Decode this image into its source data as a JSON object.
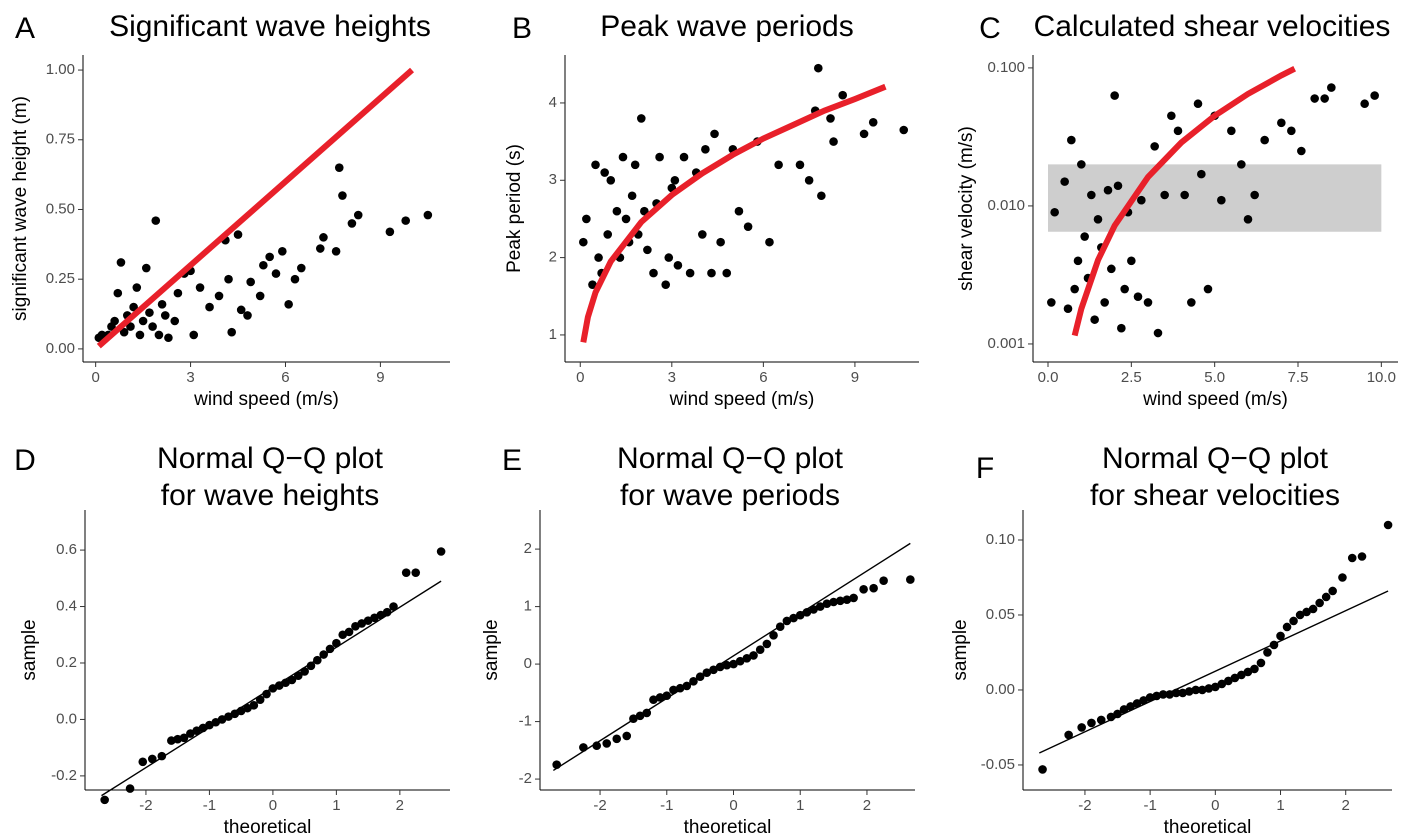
{
  "chart_data": [
    {
      "type": "scatter",
      "panel_label": "A",
      "title": [
        "Significant wave heights"
      ],
      "x_label": "wind speed (m/s)",
      "y_label": "significant wave height (m)",
      "xlim": [
        -0.4,
        11.2
      ],
      "ylim": [
        -0.047,
        1.054
      ],
      "log_y": false,
      "xticks": [
        0,
        3,
        6,
        9
      ],
      "yticks": [
        {
          "value": 0,
          "label": "0.00"
        },
        {
          "value": 0.25,
          "label": "0.25"
        },
        {
          "value": 0.5,
          "label": "0.50"
        },
        {
          "value": 0.75,
          "label": "0.75"
        },
        {
          "value": 1,
          "label": "1.00"
        }
      ],
      "series": [
        {
          "mark": "point",
          "color": "#000000",
          "x": [
            0.1,
            0.2,
            0.4,
            0.5,
            0.6,
            0.7,
            0.8,
            0.9,
            1.0,
            1.1,
            1.2,
            1.3,
            1.4,
            1.5,
            1.6,
            1.7,
            1.8,
            1.9,
            2.0,
            2.1,
            2.2,
            2.3,
            2.5,
            2.6,
            2.8,
            3.0,
            3.1,
            3.3,
            3.6,
            3.9,
            4.1,
            4.2,
            4.3,
            4.5,
            4.6,
            4.8,
            4.9,
            5.2,
            5.3,
            5.5,
            5.7,
            5.9,
            6.1,
            6.3,
            6.5,
            7.1,
            7.2,
            7.6,
            7.7,
            7.8,
            8.1,
            8.3,
            9.3,
            9.8,
            10.5
          ],
          "values": [
            0.04,
            0.05,
            0.05,
            0.08,
            0.1,
            0.2,
            0.31,
            0.06,
            0.12,
            0.08,
            0.15,
            0.22,
            0.05,
            0.1,
            0.29,
            0.13,
            0.08,
            0.46,
            0.05,
            0.16,
            0.12,
            0.04,
            0.1,
            0.2,
            0.27,
            0.28,
            0.05,
            0.22,
            0.15,
            0.19,
            0.39,
            0.25,
            0.06,
            0.41,
            0.14,
            0.12,
            0.24,
            0.19,
            0.3,
            0.33,
            0.27,
            0.35,
            0.16,
            0.25,
            0.29,
            0.36,
            0.4,
            0.35,
            0.65,
            0.55,
            0.45,
            0.48,
            0.42,
            0.46,
            0.48
          ]
        },
        {
          "mark": "line",
          "style": "thick",
          "color": "#e8202a",
          "x": [
            0.1,
            10
          ],
          "values": [
            0.01,
            1.0
          ]
        }
      ]
    },
    {
      "type": "scatter",
      "panel_label": "B",
      "title": [
        "Peak wave periods"
      ],
      "x_label": "wind speed (m/s)",
      "y_label": "Peak period (s)",
      "xlim": [
        -0.5,
        11.1
      ],
      "ylim": [
        0.65,
        4.62
      ],
      "log_y": false,
      "xticks": [
        0,
        3,
        6,
        9
      ],
      "yticks": [
        1,
        2,
        3,
        4
      ],
      "series": [
        {
          "mark": "point",
          "color": "#000000",
          "x": [
            0.1,
            0.2,
            0.4,
            0.5,
            0.6,
            0.7,
            0.8,
            0.9,
            1.0,
            1.2,
            1.3,
            1.4,
            1.5,
            1.6,
            1.7,
            1.8,
            1.9,
            2.0,
            2.1,
            2.2,
            2.4,
            2.5,
            2.6,
            2.8,
            2.9,
            3.0,
            3.1,
            3.2,
            3.4,
            3.6,
            3.8,
            4.0,
            4.1,
            4.3,
            4.4,
            4.6,
            4.8,
            5.0,
            5.2,
            5.5,
            5.8,
            6.2,
            6.5,
            7.2,
            7.5,
            7.7,
            7.8,
            7.9,
            8.2,
            8.3,
            8.6,
            9.3,
            9.6,
            10.6
          ],
          "values": [
            2.2,
            2.5,
            1.65,
            3.2,
            2.0,
            1.8,
            3.1,
            2.3,
            3.0,
            2.6,
            2.0,
            3.3,
            2.5,
            2.2,
            2.8,
            3.2,
            2.3,
            3.8,
            2.6,
            2.1,
            1.8,
            2.7,
            3.3,
            1.65,
            2.0,
            2.9,
            3.0,
            1.9,
            3.3,
            1.8,
            3.1,
            2.3,
            3.4,
            1.8,
            3.6,
            2.2,
            1.8,
            3.4,
            2.6,
            2.4,
            3.5,
            2.2,
            3.2,
            3.2,
            3.0,
            3.9,
            4.45,
            2.8,
            3.8,
            3.5,
            4.1,
            3.6,
            3.75,
            3.65
          ]
        },
        {
          "mark": "line",
          "style": "thick",
          "color": "#e8202a",
          "x": [
            0.1,
            0.25,
            0.5,
            1,
            2,
            3,
            4,
            5,
            6,
            7,
            8,
            9,
            10
          ],
          "values": [
            0.905,
            1.23,
            1.55,
            1.95,
            2.46,
            2.81,
            3.09,
            3.33,
            3.54,
            3.72,
            3.9,
            4.05,
            4.21
          ]
        }
      ]
    },
    {
      "type": "scatter",
      "panel_label": "C",
      "title": [
        "Calculated shear velocities"
      ],
      "x_label": "wind speed (m/s)",
      "y_label": "shear velocity (m/s)",
      "xlim": [
        -0.45,
        10.5
      ],
      "ylim": [
        0.00074,
        0.124
      ],
      "log_y": true,
      "xticks": [
        {
          "value": 0,
          "label": "0.0"
        },
        2.5,
        {
          "value": 5,
          "label": "5.0"
        },
        7.5,
        {
          "value": 10,
          "label": "10.0"
        }
      ],
      "yticks": [
        0.001,
        {
          "value": 0.01,
          "label": "0.010"
        },
        {
          "value": 0.1,
          "label": "0.100"
        }
      ],
      "shaded_region": {
        "color": "#bdbdbd",
        "x": [
          0,
          10
        ],
        "y": [
          0.0065,
          0.02
        ]
      },
      "series": [
        {
          "mark": "point",
          "color": "#000000",
          "x": [
            0.1,
            0.2,
            0.5,
            0.6,
            0.7,
            0.8,
            0.9,
            1.0,
            1.1,
            1.2,
            1.3,
            1.4,
            1.5,
            1.6,
            1.7,
            1.8,
            1.9,
            2.0,
            2.1,
            2.2,
            2.3,
            2.4,
            2.5,
            2.7,
            2.8,
            3.0,
            3.2,
            3.3,
            3.5,
            3.7,
            3.9,
            4.1,
            4.3,
            4.5,
            4.6,
            4.8,
            5.0,
            5.2,
            5.5,
            5.8,
            6.0,
            6.2,
            6.5,
            7.0,
            7.3,
            7.6,
            8.0,
            8.3,
            8.5,
            9.5,
            9.8
          ],
          "values": [
            0.002,
            0.009,
            0.015,
            0.0018,
            0.03,
            0.0025,
            0.004,
            0.02,
            0.006,
            0.003,
            0.012,
            0.0015,
            0.008,
            0.005,
            0.002,
            0.013,
            0.0035,
            0.063,
            0.014,
            0.0013,
            0.0025,
            0.009,
            0.004,
            0.0022,
            0.011,
            0.002,
            0.027,
            0.0012,
            0.012,
            0.045,
            0.035,
            0.012,
            0.002,
            0.055,
            0.017,
            0.0025,
            0.045,
            0.011,
            0.035,
            0.02,
            0.008,
            0.012,
            0.03,
            0.04,
            0.035,
            0.025,
            0.06,
            0.06,
            0.072,
            0.055,
            0.063
          ]
        },
        {
          "mark": "line",
          "style": "thick",
          "color": "#e8202a",
          "x": [
            0.8,
            1,
            1.5,
            2,
            3,
            4,
            5,
            6,
            7,
            7.4
          ],
          "values": [
            0.00115,
            0.0018,
            0.00405,
            0.0072,
            0.0162,
            0.0288,
            0.045,
            0.0648,
            0.0882,
            0.0986
          ]
        }
      ]
    },
    {
      "type": "scatter",
      "panel_label": "D",
      "title": [
        "Normal Q−Q plot",
        "for wave heights"
      ],
      "x_label": "theoretical",
      "y_label": "sample",
      "xlim": [
        -2.96,
        2.79
      ],
      "ylim": [
        -0.25,
        0.742
      ],
      "log_y": false,
      "xticks": [
        -2,
        -1,
        0,
        1,
        2
      ],
      "yticks": [
        -0.2,
        {
          "value": 0,
          "label": "0.0"
        },
        0.2,
        0.4,
        0.6
      ],
      "series": [
        {
          "mark": "point",
          "color": "#000000",
          "x": [
            -2.65,
            -2.25,
            -2.05,
            -1.9,
            -1.75,
            -1.6,
            -1.5,
            -1.4,
            -1.3,
            -1.2,
            -1.1,
            -1.0,
            -0.9,
            -0.8,
            -0.7,
            -0.6,
            -0.5,
            -0.4,
            -0.3,
            -0.2,
            -0.1,
            0,
            0.1,
            0.2,
            0.3,
            0.4,
            0.5,
            0.6,
            0.7,
            0.8,
            0.9,
            1.0,
            1.1,
            1.2,
            1.3,
            1.4,
            1.5,
            1.6,
            1.7,
            1.8,
            1.9,
            2.1,
            2.25,
            2.65
          ],
          "values": [
            -0.285,
            -0.245,
            -0.15,
            -0.14,
            -0.13,
            -0.075,
            -0.07,
            -0.065,
            -0.05,
            -0.04,
            -0.03,
            -0.02,
            -0.01,
            0.0,
            0.01,
            0.02,
            0.03,
            0.04,
            0.05,
            0.07,
            0.09,
            0.11,
            0.12,
            0.13,
            0.14,
            0.155,
            0.17,
            0.19,
            0.21,
            0.23,
            0.25,
            0.27,
            0.3,
            0.31,
            0.33,
            0.34,
            0.35,
            0.36,
            0.37,
            0.38,
            0.4,
            0.52,
            0.52,
            0.595
          ]
        },
        {
          "mark": "line",
          "style": "thin",
          "color": "#000000",
          "x": [
            -2.7,
            2.65
          ],
          "values": [
            -0.27,
            0.49
          ]
        }
      ]
    },
    {
      "type": "scatter",
      "panel_label": "E",
      "title": [
        "Normal Q−Q plot",
        "for wave periods"
      ],
      "x_label": "theoretical",
      "y_label": "sample",
      "xlim": [
        -2.9,
        2.72
      ],
      "ylim": [
        -2.19,
        2.68
      ],
      "log_y": false,
      "xticks": [
        -2,
        -1,
        0,
        1,
        2
      ],
      "yticks": [
        -2,
        -1,
        0,
        1,
        2
      ],
      "series": [
        {
          "mark": "point",
          "color": "#000000",
          "x": [
            -2.65,
            -2.25,
            -2.05,
            -1.9,
            -1.75,
            -1.6,
            -1.5,
            -1.4,
            -1.3,
            -1.2,
            -1.1,
            -1.0,
            -0.9,
            -0.8,
            -0.7,
            -0.6,
            -0.5,
            -0.4,
            -0.3,
            -0.2,
            -0.1,
            0,
            0.1,
            0.2,
            0.3,
            0.4,
            0.5,
            0.6,
            0.7,
            0.8,
            0.9,
            1.0,
            1.1,
            1.2,
            1.3,
            1.4,
            1.5,
            1.6,
            1.7,
            1.8,
            1.95,
            2.1,
            2.25,
            2.65
          ],
          "values": [
            -1.75,
            -1.45,
            -1.42,
            -1.38,
            -1.3,
            -1.25,
            -0.95,
            -0.9,
            -0.85,
            -0.62,
            -0.58,
            -0.55,
            -0.45,
            -0.42,
            -0.38,
            -0.3,
            -0.22,
            -0.15,
            -0.1,
            -0.05,
            -0.02,
            0.0,
            0.05,
            0.1,
            0.15,
            0.25,
            0.35,
            0.5,
            0.65,
            0.75,
            0.8,
            0.85,
            0.9,
            0.95,
            1.0,
            1.05,
            1.08,
            1.1,
            1.12,
            1.15,
            1.3,
            1.32,
            1.45,
            1.47
          ]
        },
        {
          "mark": "line",
          "style": "thin",
          "color": "#000000",
          "x": [
            -2.7,
            2.65
          ],
          "values": [
            -1.85,
            2.1
          ]
        }
      ]
    },
    {
      "type": "scatter",
      "panel_label": "F",
      "title": [
        "Normal Q−Q plot",
        "for shear velocities"
      ],
      "x_label": "theoretical",
      "y_label": "sample",
      "xlim": [
        -2.95,
        2.71
      ],
      "ylim": [
        -0.0667,
        0.12
      ],
      "log_y": false,
      "xticks": [
        -2,
        -1,
        0,
        1,
        2
      ],
      "yticks": [
        -0.05,
        {
          "value": 0,
          "label": "0.00"
        },
        0.05,
        {
          "value": 0.1,
          "label": "0.10"
        }
      ],
      "series": [
        {
          "mark": "point",
          "color": "#000000",
          "x": [
            -2.65,
            -2.25,
            -2.05,
            -1.9,
            -1.75,
            -1.6,
            -1.5,
            -1.4,
            -1.3,
            -1.2,
            -1.1,
            -1.0,
            -0.9,
            -0.8,
            -0.7,
            -0.6,
            -0.5,
            -0.4,
            -0.3,
            -0.2,
            -0.1,
            0,
            0.1,
            0.2,
            0.3,
            0.4,
            0.5,
            0.6,
            0.7,
            0.8,
            0.9,
            1.0,
            1.1,
            1.2,
            1.3,
            1.4,
            1.5,
            1.6,
            1.7,
            1.8,
            1.95,
            2.1,
            2.25,
            2.65
          ],
          "values": [
            -0.053,
            -0.03,
            -0.025,
            -0.022,
            -0.02,
            -0.018,
            -0.016,
            -0.013,
            -0.011,
            -0.009,
            -0.007,
            -0.005,
            -0.004,
            -0.003,
            -0.003,
            -0.002,
            -0.002,
            -0.001,
            0,
            0,
            0.001,
            0.002,
            0.004,
            0.006,
            0.008,
            0.01,
            0.012,
            0.014,
            0.018,
            0.025,
            0.03,
            0.036,
            0.042,
            0.046,
            0.05,
            0.052,
            0.054,
            0.058,
            0.062,
            0.066,
            0.075,
            0.088,
            0.089,
            0.11
          ]
        },
        {
          "mark": "line",
          "style": "thin",
          "color": "#000000",
          "x": [
            -2.7,
            2.65
          ],
          "values": [
            -0.042,
            0.066
          ]
        }
      ]
    }
  ]
}
